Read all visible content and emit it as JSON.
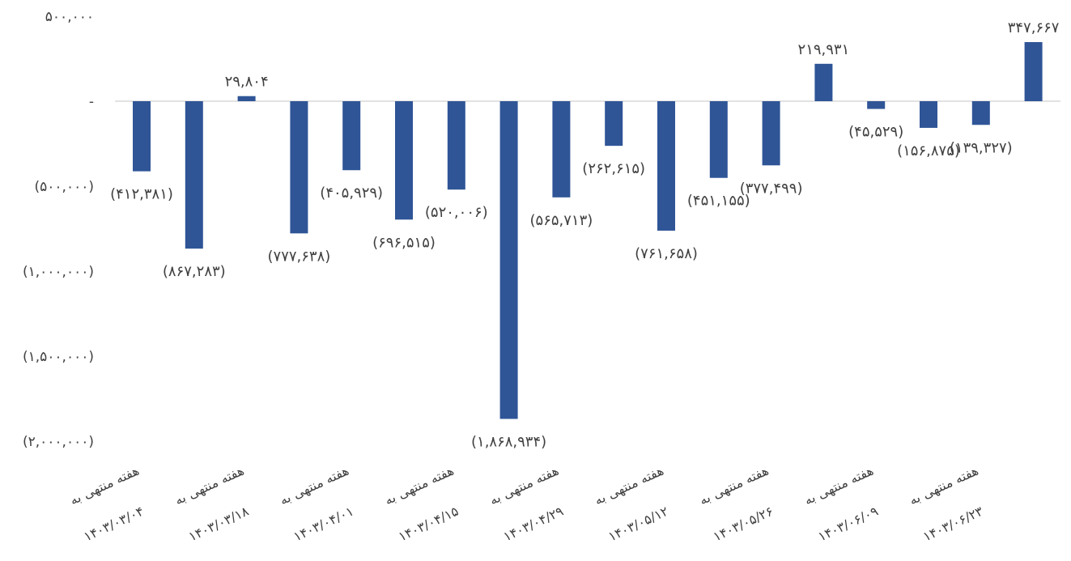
{
  "chart_data": {
    "type": "bar",
    "title": "",
    "xlabel": "",
    "ylabel": "",
    "ylim": [
      -2000000,
      500000
    ],
    "grid": false,
    "legend": "none",
    "bar_color": "#2F5597",
    "axis_color": "#D9D9D9",
    "text_color": "#404040",
    "y_ticks": [
      {
        "value": 500000,
        "label": "۵۰۰,۰۰۰"
      },
      {
        "value": 0,
        "label": "-"
      },
      {
        "value": -500000,
        "label": "(۵۰۰,۰۰۰)"
      },
      {
        "value": -1000000,
        "label": "(۱,۰۰۰,۰۰۰)"
      },
      {
        "value": -1500000,
        "label": "(۱,۵۰۰,۰۰۰)"
      },
      {
        "value": -2000000,
        "label": "(۲,۰۰۰,۰۰۰)"
      }
    ],
    "x_tick_labels": [
      {
        "bar_index": 0,
        "line1": "هفته منتهی به",
        "line2": "۱۴۰۳/۰۳/۰۴"
      },
      {
        "bar_index": 2,
        "line1": "هفته منتهی به",
        "line2": "۱۴۰۳/۰۳/۱۸"
      },
      {
        "bar_index": 4,
        "line1": "هفته منتهی به",
        "line2": "۱۴۰۳/۰۴/۰۱"
      },
      {
        "bar_index": 6,
        "line1": "هفته منتهی به",
        "line2": "۱۴۰۳/۰۴/۱۵"
      },
      {
        "bar_index": 8,
        "line1": "هفته منتهی به",
        "line2": "۱۴۰۳/۰۴/۲۹"
      },
      {
        "bar_index": 10,
        "line1": "هفته منتهی به",
        "line2": "۱۴۰۳/۰۵/۱۲"
      },
      {
        "bar_index": 12,
        "line1": "هفته منتهی به",
        "line2": "۱۴۰۳/۰۵/۲۶"
      },
      {
        "bar_index": 14,
        "line1": "هفته منتهی به",
        "line2": "۱۴۰۳/۰۶/۰۹"
      },
      {
        "bar_index": 16,
        "line1": "هفته منتهی به",
        "line2": "۱۴۰۳/۰۶/۲۳"
      }
    ],
    "values": [
      -412381,
      -867283,
      29804,
      -777638,
      -405929,
      -696515,
      -520006,
      -1868934,
      -565713,
      -262615,
      -761658,
      -451155,
      -377499,
      219931,
      -45529,
      -156875,
      -139327,
      347667
    ],
    "data_labels": [
      "(۴۱۲,۳۸۱)",
      "(۸۶۷,۲۸۳)",
      "۲۹,۸۰۴",
      "(۷۷۷,۶۳۸)",
      "(۴۰۵,۹۲۹)",
      "(۶۹۶,۵۱۵)",
      "(۵۲۰,۰۰۶)",
      "(۱,۸۶۸,۹۳۴)",
      "(۵۶۵,۷۱۳)",
      "(۲۶۲,۶۱۵)",
      "(۷۶۱,۶۵۸)",
      "(۴۵۱,۱۵۵)",
      "(۳۷۷,۴۹۹)",
      "۲۱۹,۹۳۱",
      "(۴۵,۵۲۹)",
      "(۱۵۶,۸۷۵)",
      "(۱۳۹,۳۲۷)",
      "۳۴۷,۶۶۷"
    ]
  }
}
